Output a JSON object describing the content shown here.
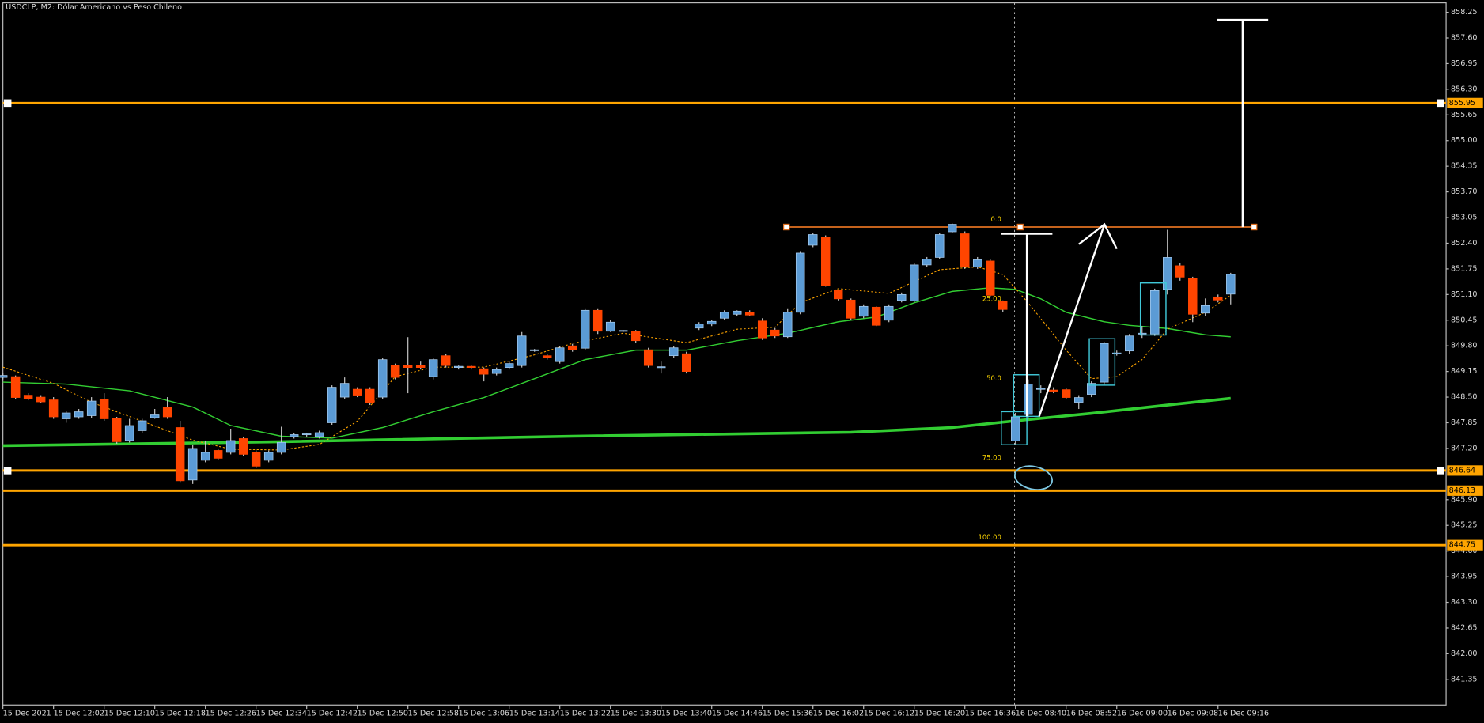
{
  "chart_data": {
    "type": "candlestick",
    "title": "USDCLP, M2:  Dólar Americano vs Peso Chileno",
    "categories": [
      "15 Dec 2021",
      null,
      null,
      null,
      "15 Dec 12:02",
      null,
      null,
      null,
      "15 Dec 12:10",
      null,
      null,
      null,
      "15 Dec 12:18",
      null,
      null,
      null,
      "15 Dec 12:26",
      null,
      null,
      null,
      "15 Dec 12:34",
      null,
      null,
      null,
      "15 Dec 12:42",
      null,
      null,
      null,
      "15 Dec 12:50",
      null,
      null,
      null,
      "15 Dec 12:58",
      null,
      null,
      null,
      "15 Dec 13:06",
      null,
      null,
      null,
      "15 Dec 13:14",
      null,
      null,
      null,
      "15 Dec 13:22",
      null,
      null,
      null,
      "15 Dec 13:30",
      null,
      null,
      null,
      "15 Dec 13:40",
      null,
      null,
      null,
      "15 Dec 14:46",
      null,
      null,
      null,
      "15 Dec 15:36",
      null,
      null,
      null,
      "15 Dec 16:02",
      null,
      null,
      null,
      "15 Dec 16:12",
      null,
      null,
      null,
      "15 Dec 16:20",
      null,
      null,
      null,
      "15 Dec 16:36",
      null,
      null,
      null,
      "16 Dec 08:40",
      null,
      null,
      null,
      "16 Dec 08:52",
      null,
      null,
      null,
      "16 Dec 09:00",
      null,
      null,
      null,
      "16 Dec 09:08",
      null,
      null,
      null,
      "16 Dec 09:16",
      null
    ],
    "open": [
      849.0,
      849.02,
      848.55,
      848.5,
      848.43,
      847.95,
      848.0,
      848.03,
      848.45,
      847.97,
      847.4,
      847.65,
      847.98,
      848.25,
      847.73,
      846.4,
      846.9,
      847.15,
      847.1,
      847.45,
      847.1,
      846.9,
      847.1,
      847.5,
      847.55,
      847.5,
      847.85,
      848.5,
      848.7,
      848.7,
      848.5,
      849.3,
      849.3,
      849.3,
      849.02,
      849.55,
      849.25,
      849.28,
      849.22,
      849.1,
      849.25,
      849.3,
      849.68,
      849.55,
      849.4,
      849.8,
      849.74,
      850.7,
      850.17,
      850.17,
      850.17,
      849.7,
      849.25,
      849.55,
      849.6,
      850.25,
      850.35,
      850.5,
      850.6,
      850.65,
      850.43,
      850.2,
      850.03,
      850.65,
      852.35,
      852.55,
      851.2,
      850.96,
      850.55,
      850.78,
      850.45,
      850.95,
      850.94,
      851.85,
      852.04,
      852.69,
      852.64,
      851.8,
      851.95,
      850.92,
      847.39,
      848.06,
      848.7,
      848.68,
      848.69,
      848.37,
      848.57,
      848.88,
      849.6,
      849.67,
      850.1,
      850.1,
      851.23,
      851.83,
      851.51,
      850.63,
      851.04,
      851.11
    ],
    "high": [
      849.1,
      849.05,
      848.6,
      848.55,
      848.5,
      848.15,
      848.2,
      848.5,
      848.6,
      848.0,
      847.95,
      847.95,
      848.2,
      848.5,
      847.9,
      847.3,
      847.4,
      847.2,
      847.7,
      847.5,
      847.15,
      847.15,
      847.75,
      847.6,
      847.6,
      847.65,
      848.8,
      849.0,
      848.75,
      848.75,
      849.5,
      849.35,
      850.02,
      849.4,
      849.5,
      849.6,
      849.3,
      849.3,
      849.25,
      849.25,
      849.4,
      850.15,
      849.72,
      849.6,
      849.8,
      849.85,
      850.75,
      850.75,
      850.45,
      850.2,
      850.2,
      849.75,
      849.4,
      849.8,
      849.65,
      850.4,
      850.45,
      850.7,
      850.7,
      850.7,
      850.5,
      850.25,
      850.75,
      852.2,
      852.65,
      852.6,
      851.22,
      851.0,
      850.85,
      850.8,
      850.85,
      851.15,
      851.9,
      852.05,
      852.65,
      852.9,
      852.7,
      852.05,
      852.0,
      850.95,
      848.1,
      848.95,
      848.8,
      848.75,
      848.72,
      848.55,
      848.9,
      849.9,
      849.68,
      850.1,
      850.3,
      851.25,
      852.74,
      851.9,
      851.55,
      851.0,
      851.1,
      851.65
    ],
    "low": [
      848.95,
      848.45,
      848.42,
      848.35,
      847.95,
      847.85,
      847.95,
      847.98,
      847.9,
      847.32,
      847.35,
      847.6,
      847.95,
      847.95,
      846.35,
      846.3,
      846.85,
      846.9,
      847.05,
      847.0,
      846.7,
      846.85,
      847.05,
      847.45,
      847.5,
      847.45,
      847.8,
      848.45,
      848.5,
      848.3,
      848.45,
      848.95,
      848.6,
      849.2,
      848.95,
      849.25,
      849.2,
      849.2,
      848.9,
      849.05,
      849.2,
      849.25,
      849.65,
      849.45,
      849.35,
      849.65,
      849.7,
      850.1,
      850.15,
      850.15,
      849.88,
      849.25,
      849.1,
      849.5,
      849.1,
      850.2,
      850.3,
      850.45,
      850.55,
      850.55,
      849.95,
      850.0,
      850.0,
      850.6,
      852.3,
      851.3,
      850.95,
      850.45,
      850.5,
      850.3,
      850.4,
      850.9,
      850.9,
      851.8,
      852.0,
      852.65,
      851.75,
      851.75,
      851.05,
      850.65,
      847.3,
      847.95,
      848.6,
      848.6,
      848.45,
      848.2,
      848.5,
      848.8,
      849.55,
      849.6,
      850.0,
      850.05,
      851.1,
      851.45,
      850.4,
      850.55,
      850.9,
      850.85
    ],
    "close": [
      849.05,
      848.49,
      848.46,
      848.38,
      848.0,
      848.1,
      848.13,
      848.4,
      847.95,
      847.37,
      847.78,
      847.9,
      848.05,
      848.0,
      846.38,
      847.2,
      847.1,
      846.95,
      847.4,
      847.05,
      846.75,
      847.1,
      847.35,
      847.55,
      847.57,
      847.6,
      848.75,
      848.85,
      848.55,
      848.35,
      849.45,
      849.0,
      849.25,
      849.25,
      849.45,
      849.3,
      849.28,
      849.25,
      849.08,
      849.2,
      849.35,
      850.05,
      849.7,
      849.5,
      849.75,
      849.7,
      850.7,
      850.17,
      850.4,
      850.19,
      849.93,
      849.3,
      849.27,
      849.75,
      849.15,
      850.35,
      850.42,
      850.65,
      850.68,
      850.58,
      850.0,
      850.05,
      850.65,
      852.15,
      852.62,
      851.32,
      850.99,
      850.5,
      850.8,
      850.32,
      850.8,
      851.1,
      851.85,
      852.0,
      852.62,
      852.88,
      851.8,
      851.98,
      851.08,
      850.72,
      848.0,
      848.83,
      848.72,
      848.65,
      848.49,
      848.49,
      848.85,
      849.86,
      849.62,
      850.05,
      850.12,
      851.2,
      852.04,
      851.54,
      850.6,
      850.82,
      850.96,
      851.61
    ],
    "up_color": "#5b9bd5",
    "down_color": "#ff4500",
    "wick_color": "#c8c8c8",
    "indicators": [
      {
        "color": "#32cd32",
        "width": 3,
        "dashed": false,
        "x": [
          0,
          22,
          45,
          67,
          75,
          80,
          86,
          92,
          97
        ],
        "values": [
          847.27,
          847.37,
          847.51,
          847.61,
          847.73,
          847.9,
          848.09,
          848.3,
          848.47
        ]
      },
      {
        "color": "#32cd32",
        "width": 1.2,
        "dashed": false,
        "x": [
          0,
          5,
          10,
          15,
          18,
          22,
          26,
          30,
          34,
          38,
          42,
          46,
          50,
          54,
          58,
          62,
          66,
          69,
          72,
          75,
          78,
          80,
          82,
          84,
          87,
          89,
          92,
          95,
          97
        ],
        "values": [
          848.88,
          848.83,
          848.66,
          848.25,
          847.78,
          847.51,
          847.46,
          847.73,
          848.13,
          848.49,
          848.97,
          849.45,
          849.69,
          849.69,
          849.93,
          850.12,
          850.41,
          850.53,
          850.89,
          851.18,
          851.27,
          851.23,
          850.99,
          850.65,
          850.41,
          850.32,
          850.24,
          850.08,
          850.03
        ]
      },
      {
        "color": "#ffa500",
        "width": 0.9,
        "dashed": true,
        "x": [
          0,
          4,
          7,
          11,
          15,
          18,
          22,
          25,
          28,
          31,
          34,
          38,
          42,
          45,
          49,
          54,
          58,
          61,
          63,
          66,
          70,
          74,
          77,
          79,
          81,
          84,
          86,
          88,
          90,
          92,
          95,
          97
        ],
        "values": [
          849.26,
          848.85,
          848.37,
          847.89,
          847.41,
          847.18,
          847.16,
          847.3,
          847.89,
          849.02,
          849.26,
          849.26,
          849.57,
          849.86,
          850.12,
          849.88,
          850.22,
          850.27,
          850.89,
          851.25,
          851.13,
          851.73,
          851.8,
          851.61,
          850.89,
          849.69,
          848.97,
          849.02,
          849.45,
          850.22,
          850.65,
          851.08
        ]
      }
    ],
    "levels": [
      855.95,
      846.64,
      846.13,
      844.75
    ],
    "level_color": "#ffa500",
    "fib_levels": [
      {
        "value": 852.81,
        "label": "0.0"
      },
      {
        "value": 850.79,
        "label": "25.00"
      },
      {
        "value": 848.78,
        "label": "50.0"
      },
      {
        "value": 846.77,
        "label": "75.00"
      },
      {
        "value": 844.75,
        "label": "100.00"
      }
    ],
    "fib_color": "#e07020",
    "fib_label_color": "#ffd700",
    "ylim": [
      840.7,
      858.49
    ],
    "yticks": [
      858.25,
      {
        "value": 857.6,
        "label": "857.60"
      },
      856.95,
      {
        "value": 856.3,
        "label": "856.30"
      },
      855.65,
      {
        "value": 855,
        "label": "855.00"
      },
      854.35,
      {
        "value": 853.7,
        "label": "853.70"
      },
      853.05,
      {
        "value": 852.4,
        "label": "852.40"
      },
      851.75,
      {
        "value": 851.1,
        "label": "851.10"
      },
      850.45,
      {
        "value": 849.8,
        "label": "849.80"
      },
      849.15,
      {
        "value": 848.5,
        "label": "848.50"
      },
      847.85,
      {
        "value": 847.2,
        "label": "847.20"
      },
      {
        "value": 845.9,
        "label": "845.90"
      },
      845.25,
      {
        "value": 844.6,
        "label": "844.60"
      },
      843.95,
      {
        "value": 843.3,
        "label": "843.30"
      },
      842.65,
      {
        "value": 842,
        "label": "842.00"
      },
      841.35
    ]
  }
}
